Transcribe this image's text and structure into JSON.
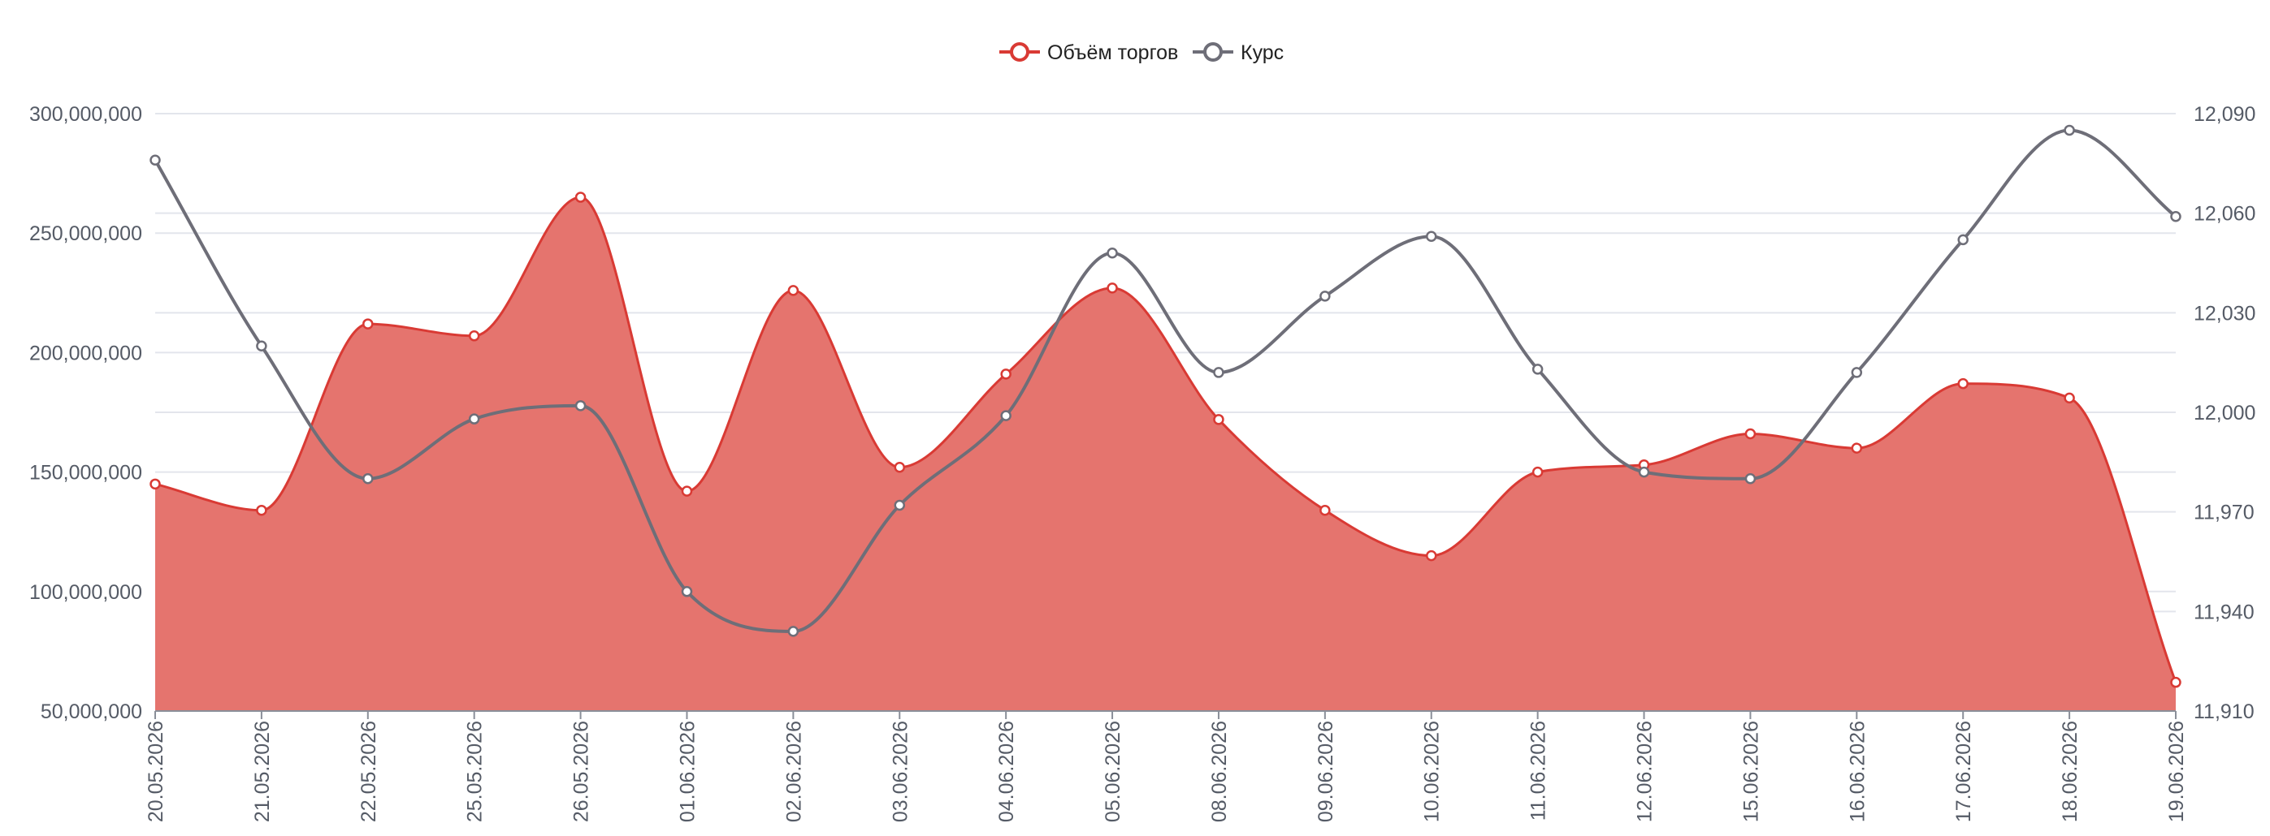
{
  "chart_data": {
    "type": "area",
    "title": "",
    "legend_position": "top-center",
    "grid": true,
    "categories": [
      "20.05.2026",
      "21.05.2026",
      "22.05.2026",
      "25.05.2026",
      "26.05.2026",
      "01.06.2026",
      "02.06.2026",
      "03.06.2026",
      "04.06.2026",
      "05.06.2026",
      "08.06.2026",
      "09.06.2026",
      "10.06.2026",
      "11.06.2026",
      "12.06.2026",
      "15.06.2026",
      "16.06.2026",
      "17.06.2026",
      "18.06.2026",
      "19.06.2026"
    ],
    "series": [
      {
        "name": "Объём торгов",
        "type": "area",
        "axis": "left",
        "color": "#d93a34",
        "fill": "#e5746e",
        "values": [
          145000000,
          134000000,
          212000000,
          207000000,
          265000000,
          142000000,
          226000000,
          152000000,
          191000000,
          227000000,
          172000000,
          134000000,
          115000000,
          150000000,
          153000000,
          166000000,
          160000000,
          187000000,
          181000000,
          62000000
        ]
      },
      {
        "name": "Курс",
        "type": "line",
        "axis": "right",
        "color": "#6e6e78",
        "values": [
          12076,
          12020,
          11980,
          11998,
          12002,
          11946,
          11934,
          11972,
          11999,
          12048,
          12012,
          12035,
          12053,
          12013,
          11982,
          11980,
          12012,
          12052,
          12085,
          12059
        ]
      }
    ],
    "y_left": {
      "min": 50000000,
      "max": 300000000,
      "ticks": [
        50000000,
        100000000,
        150000000,
        200000000,
        250000000,
        300000000
      ],
      "tick_labels": [
        "50,000,000",
        "100,000,000",
        "150,000,000",
        "200,000,000",
        "250,000,000",
        "300,000,000"
      ]
    },
    "y_right": {
      "min": 11910,
      "max": 12090,
      "ticks": [
        11910,
        11940,
        11970,
        12000,
        12030,
        12060,
        12090
      ],
      "tick_labels": [
        "11,910",
        "11,940",
        "11,970",
        "12,000",
        "12,030",
        "12,060",
        "12,090"
      ]
    }
  }
}
